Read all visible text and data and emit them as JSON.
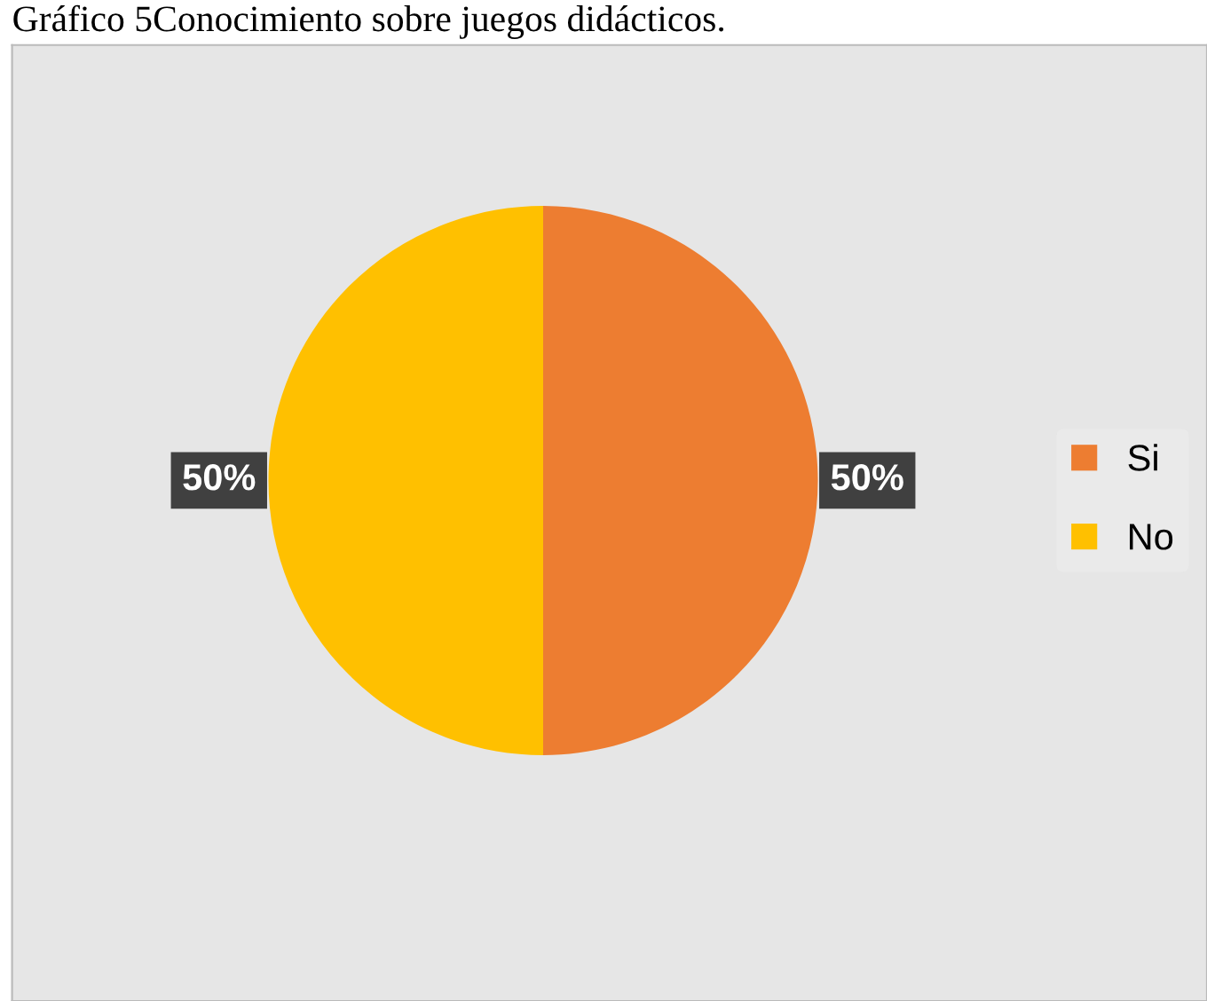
{
  "chart_data": {
    "type": "pie",
    "title": "Gráfico 5Conocimiento sobre juegos didácticos.",
    "categories": [
      "Si",
      "No"
    ],
    "values": [
      50,
      50
    ],
    "colors": [
      "#ed7d31",
      "#ffc000"
    ],
    "value_labels": [
      "50%",
      "50%"
    ],
    "legend": "right"
  }
}
